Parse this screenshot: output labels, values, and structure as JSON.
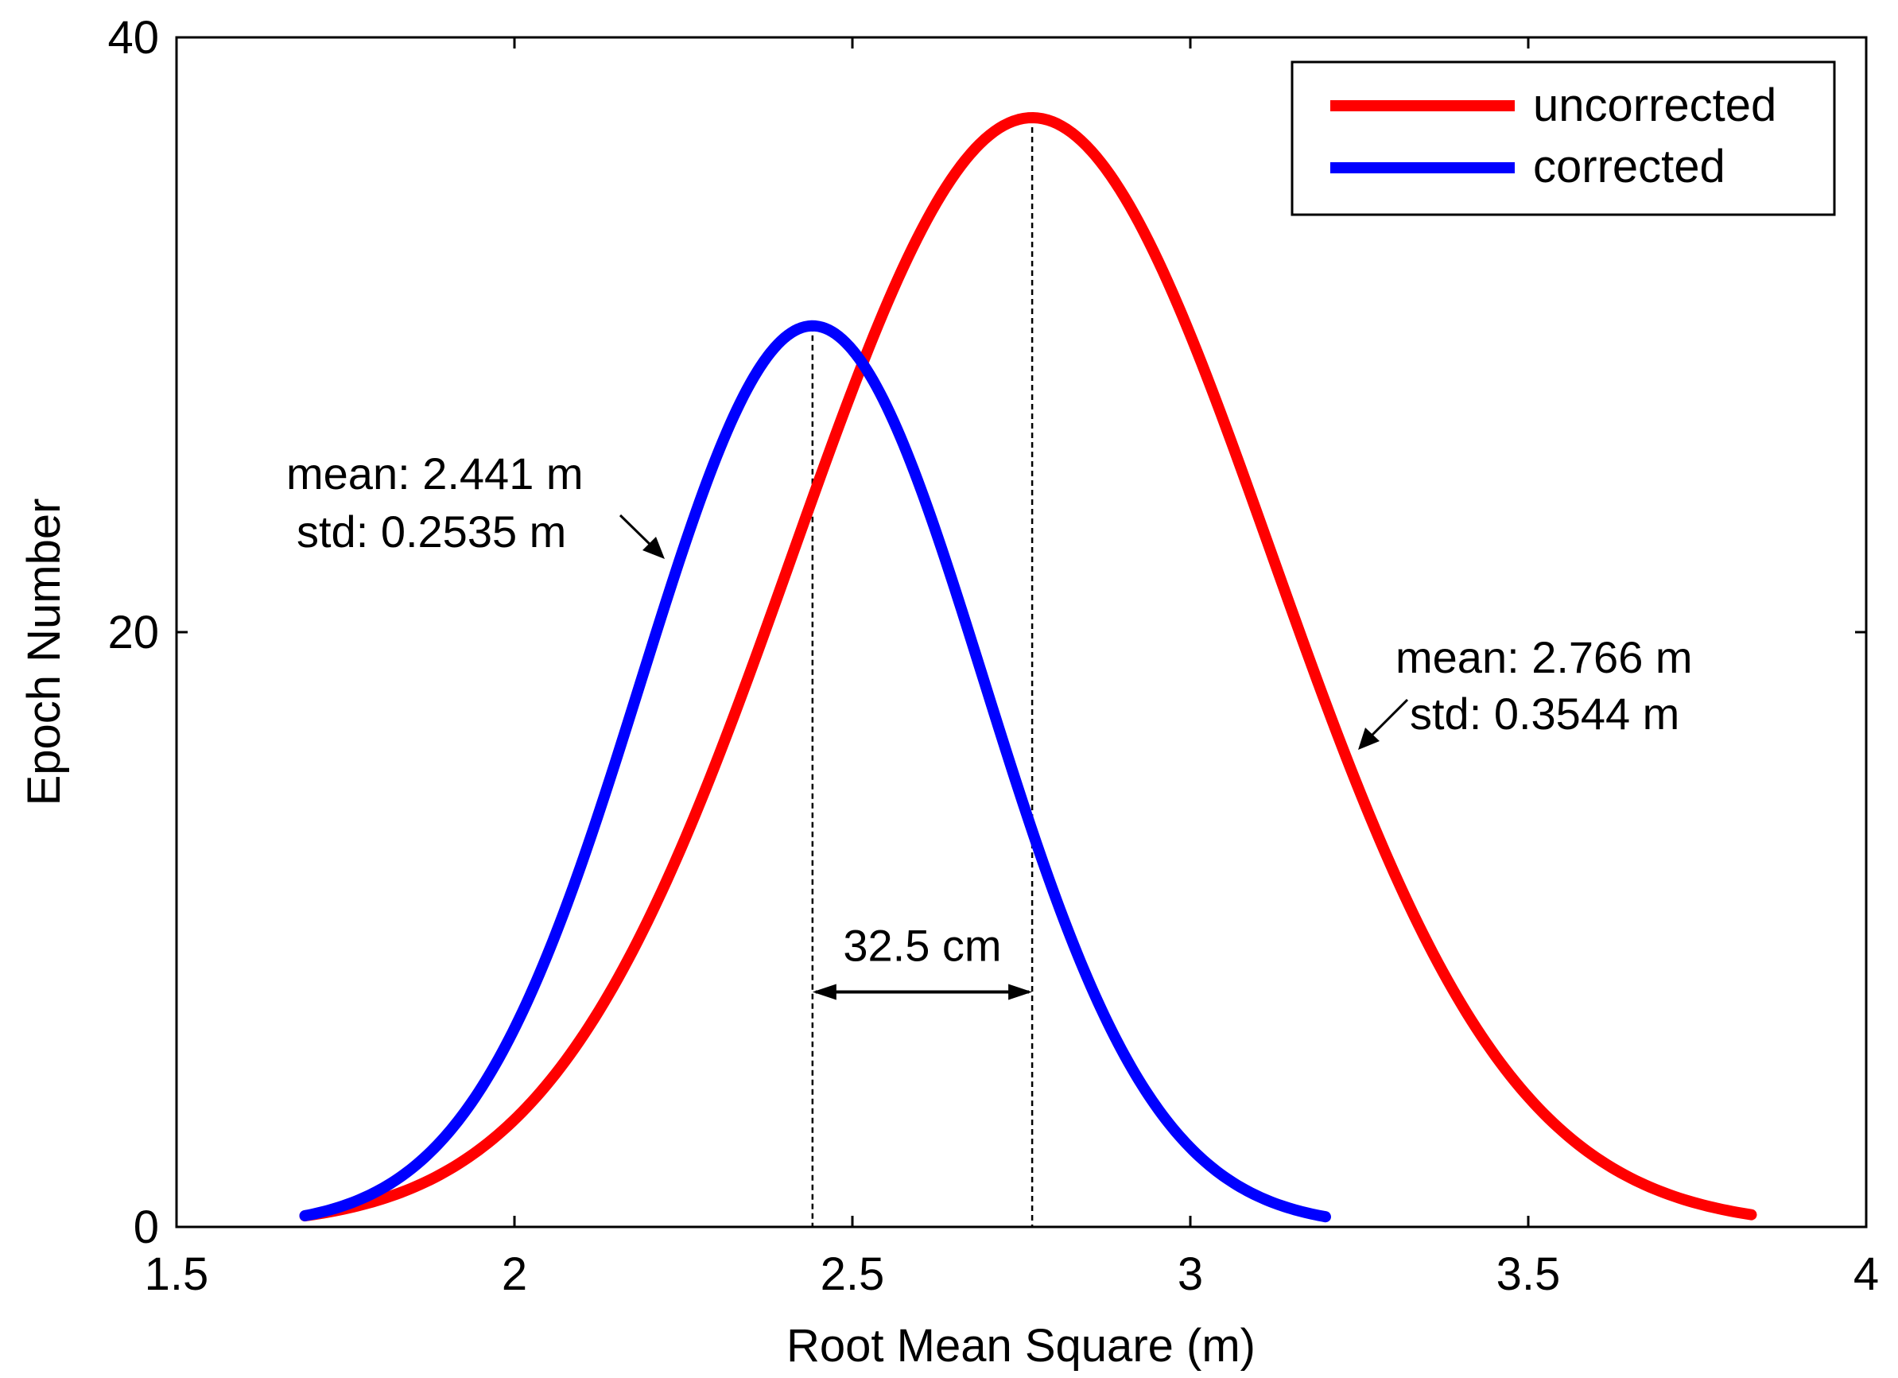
{
  "chart_data": {
    "type": "line",
    "title": "",
    "xlabel": "Root Mean Square (m)",
    "ylabel": "Epoch Number",
    "xlim": [
      1.5,
      4
    ],
    "ylim": [
      0,
      40
    ],
    "xticks": [
      1.5,
      2,
      2.5,
      3,
      3.5,
      4
    ],
    "xtick_labels": [
      "1.5",
      "2",
      "2.5",
      "3",
      "3.5",
      "4"
    ],
    "yticks": [
      0,
      20,
      40
    ],
    "ytick_labels": [
      "0",
      "20",
      "40"
    ],
    "grid": false,
    "legend_position": "top-right",
    "series": [
      {
        "name": "uncorrected",
        "color": "#ff0000",
        "mean": 2.766,
        "std": 0.3544,
        "peak": 37.3,
        "x_range": [
          1.69,
          3.83
        ]
      },
      {
        "name": "corrected",
        "color": "#0000ff",
        "mean": 2.441,
        "std": 0.2535,
        "peak": 30.3,
        "x_range": [
          1.69,
          3.2
        ]
      }
    ],
    "annotations": {
      "corrected_mean": "mean: 2.441 m",
      "corrected_std": "std: 0.2535 m",
      "uncorrected_mean": "mean: 2.766 m",
      "uncorrected_std": "std: 0.3544 m",
      "difference": "32.5 cm",
      "difference_y": 7.9
    }
  }
}
